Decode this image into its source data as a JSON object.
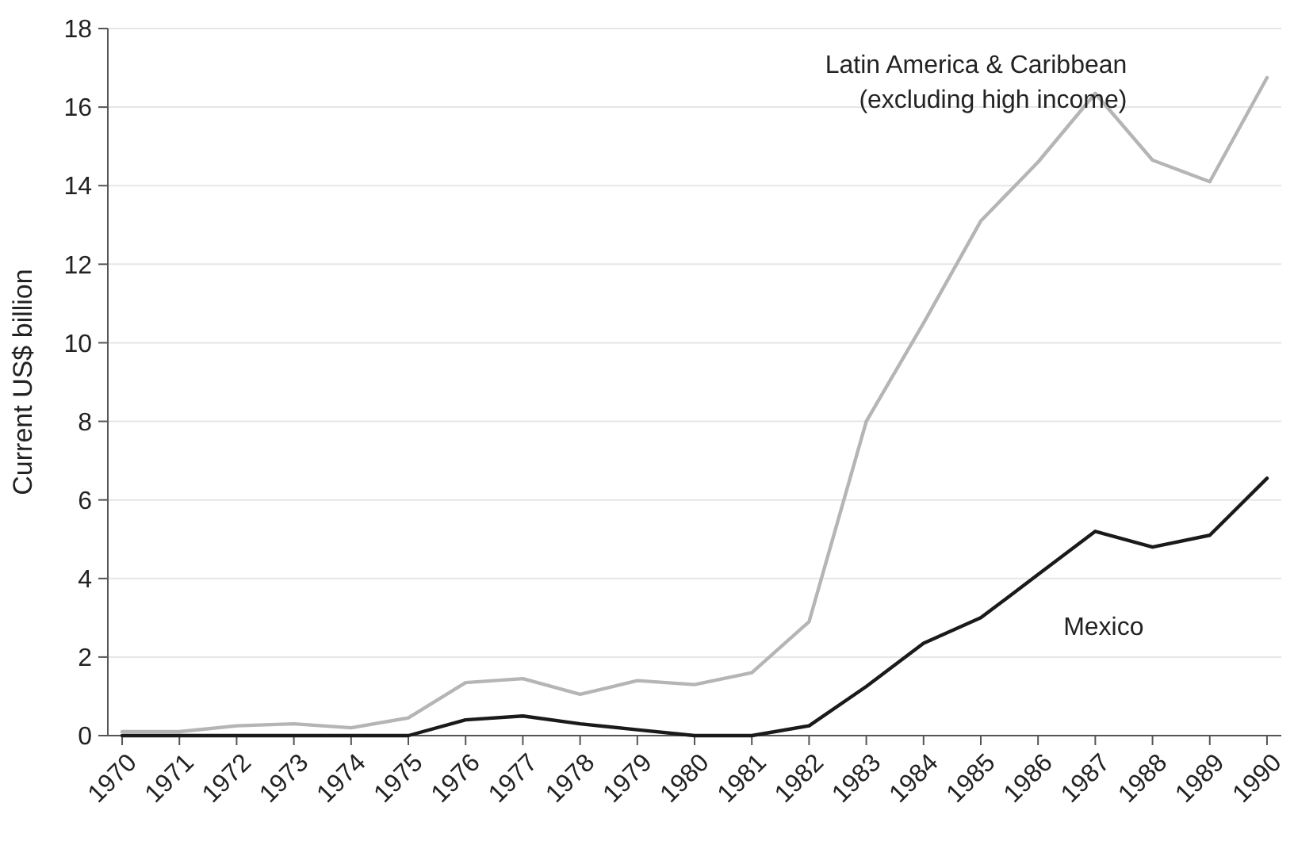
{
  "chart_data": {
    "type": "line",
    "ylabel": "Current US$ billion",
    "categories": [
      "1970",
      "1971",
      "1972",
      "1973",
      "1974",
      "1975",
      "1976",
      "1977",
      "1978",
      "1979",
      "1980",
      "1981",
      "1982",
      "1983",
      "1984",
      "1985",
      "1986",
      "1987",
      "1988",
      "1989",
      "1990"
    ],
    "ylim": [
      0,
      18
    ],
    "yticks": [
      0,
      2,
      4,
      6,
      8,
      10,
      12,
      14,
      16,
      18
    ],
    "grid": "y",
    "legend": false,
    "marker": "none",
    "line_style": "solid",
    "series": [
      {
        "name": "Latin America & Caribbean\n(excluding high income)",
        "color": "#b5b5b5",
        "values": [
          0.1,
          0.1,
          0.25,
          0.3,
          0.2,
          0.45,
          1.35,
          1.45,
          1.05,
          1.4,
          1.3,
          1.6,
          2.9,
          8.0,
          10.5,
          13.1,
          14.6,
          16.35,
          14.65,
          14.1,
          16.75
        ]
      },
      {
        "name": "Mexico",
        "color": "#1a1a1a",
        "values": [
          0,
          0,
          0,
          0,
          0,
          0,
          0.4,
          0.5,
          0.3,
          0.15,
          0,
          0,
          0.25,
          1.25,
          2.35,
          3.0,
          4.1,
          5.2,
          4.8,
          5.1,
          6.55
        ]
      }
    ]
  }
}
